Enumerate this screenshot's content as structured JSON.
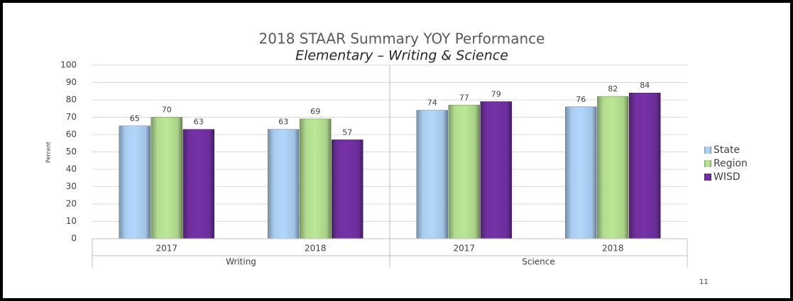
{
  "chart_data": {
    "type": "bar",
    "title": "2018 STAAR Summary YOY Performance",
    "subtitle": "Elementary – Writing & Science",
    "y_label": "Percent",
    "groups": [
      {
        "name": "Writing",
        "categories": [
          "2017",
          "2018"
        ]
      },
      {
        "name": "Science",
        "categories": [
          "2017",
          "2018"
        ]
      }
    ],
    "series": [
      {
        "name": "State",
        "color": "#a9cdf0",
        "values": [
          65,
          63,
          74,
          76
        ]
      },
      {
        "name": "Region",
        "color": "#b3dc8f",
        "values": [
          70,
          69,
          77,
          82
        ]
      },
      {
        "name": "WISD",
        "color": "#7030a0",
        "values": [
          63,
          57,
          79,
          84
        ]
      }
    ],
    "ylim": [
      0,
      100
    ],
    "yticks": [
      0,
      10,
      20,
      30,
      40,
      50,
      60,
      70,
      80,
      90,
      100
    ],
    "grid": true,
    "legend": "right"
  },
  "slide": {
    "page_number": "11"
  }
}
